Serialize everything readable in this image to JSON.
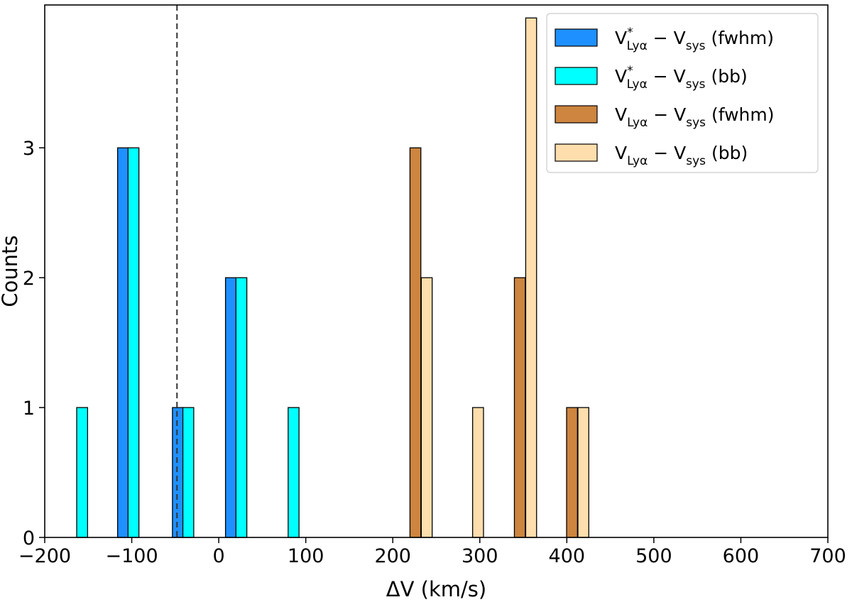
{
  "chart_data": {
    "type": "bar",
    "title": "",
    "xlabel": "ΔV (km/s)",
    "ylabel": "Counts",
    "xlim": [
      -200,
      700
    ],
    "ylim": [
      0,
      4.1
    ],
    "xticks": [
      -200,
      -100,
      0,
      100,
      200,
      300,
      400,
      500,
      600,
      700
    ],
    "xtick_labels": [
      "−200",
      "−100",
      "0",
      "100",
      "200",
      "300",
      "400",
      "500",
      "600",
      "700"
    ],
    "yticks": [
      0,
      1,
      2,
      3
    ],
    "ytick_labels": [
      "0",
      "1",
      "2",
      "3"
    ],
    "grid": false,
    "bar_width": 12.5,
    "legend_position": "top-right",
    "reference_line": {
      "x": -48,
      "style": "dashed",
      "color": "#333333"
    },
    "series": [
      {
        "name": "fwhm_star",
        "legend": {
          "base": "V",
          "sup": "*",
          "sub": "Lyα",
          "rest": " − V",
          "sub2": "sys",
          "tail": " (fwhm)"
        },
        "color": "#1e90ff",
        "bars": [
          {
            "x": -110,
            "value": 3
          },
          {
            "x": -47,
            "value": 1
          },
          {
            "x": 14,
            "value": 2
          }
        ]
      },
      {
        "name": "bb_star",
        "legend": {
          "base": "V",
          "sup": "*",
          "sub": "Lyα",
          "rest": " − V",
          "sub2": "sys",
          "tail": " (bb)"
        },
        "color": "#00ffff",
        "bars": [
          {
            "x": -157,
            "value": 1
          },
          {
            "x": -98,
            "value": 3
          },
          {
            "x": -35,
            "value": 1
          },
          {
            "x": 26,
            "value": 2
          },
          {
            "x": 86,
            "value": 1
          }
        ]
      },
      {
        "name": "fwhm",
        "legend": {
          "base": "V",
          "sup": "",
          "sub": "Lyα",
          "rest": " − V",
          "sub2": "sys",
          "tail": " (fwhm)"
        },
        "color": "#cd853f",
        "bars": [
          {
            "x": 226,
            "value": 3
          },
          {
            "x": 346,
            "value": 2
          },
          {
            "x": 406,
            "value": 1
          }
        ]
      },
      {
        "name": "bb",
        "legend": {
          "base": "V",
          "sup": "",
          "sub": "Lyα",
          "rest": " − V",
          "sub2": "sys",
          "tail": " (bb)"
        },
        "color": "#ffdead",
        "bars": [
          {
            "x": 239,
            "value": 2
          },
          {
            "x": 298,
            "value": 1
          },
          {
            "x": 359,
            "value": 4
          },
          {
            "x": 419,
            "value": 1
          }
        ]
      }
    ]
  }
}
